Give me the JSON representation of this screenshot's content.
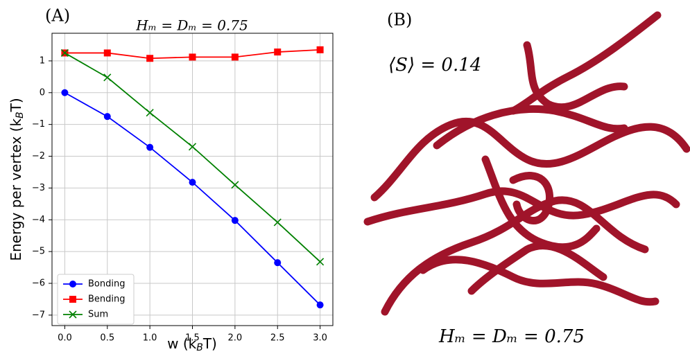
{
  "chart_data": {
    "type": "line",
    "panel_label": "(A)",
    "title": "Hₘ = Dₘ = 0.75",
    "x_label": [
      "w (k",
      "B",
      "T)"
    ],
    "y_label": [
      "Energy per vertex (k",
      "B",
      "T)"
    ],
    "x": [
      0,
      0.5,
      1,
      1.5,
      2,
      2.5,
      3
    ],
    "series": [
      {
        "name": "Bonding",
        "color": "#0000ff",
        "marker": "circle",
        "values": [
          0,
          -0.75,
          -1.72,
          -2.82,
          -4.02,
          -5.35,
          -6.68
        ]
      },
      {
        "name": "Bending",
        "color": "#ff0000",
        "marker": "square",
        "values": [
          1.25,
          1.25,
          1.08,
          1.12,
          1.12,
          1.28,
          1.35
        ]
      },
      {
        "name": "Sum",
        "color": "#008000",
        "marker": "x",
        "values": [
          1.25,
          0.48,
          -0.63,
          -1.7,
          -2.9,
          -4.08,
          -5.32
        ]
      }
    ],
    "xlim": [
      -0.15,
      3.15
    ],
    "ylim": [
      -7.33,
      1.87
    ],
    "xticks": [
      {
        "value": 0,
        "label": "0.0"
      },
      {
        "value": 0.5,
        "label": "0.5"
      },
      {
        "value": 1,
        "label": "1.0"
      },
      {
        "value": 1.5,
        "label": "1.5"
      },
      {
        "value": 2,
        "label": "2.0"
      },
      {
        "value": 2.5,
        "label": "2.5"
      },
      {
        "value": 3,
        "label": "3.0"
      }
    ],
    "yticks": [
      {
        "value": -7,
        "label": "−7"
      },
      {
        "value": -6,
        "label": "−6"
      },
      {
        "value": -5,
        "label": "−5"
      },
      {
        "value": -4,
        "label": "−4"
      },
      {
        "value": -3,
        "label": "−3"
      },
      {
        "value": -2,
        "label": "−2"
      },
      {
        "value": -1,
        "label": "−1"
      },
      0,
      1
    ],
    "grid": true,
    "legend": "lower left"
  },
  "panel_b": {
    "label": "(B)",
    "order_parameter": "⟨S⟩ = 0.14",
    "caption": "Hₘ = Dₘ = 0.75"
  }
}
